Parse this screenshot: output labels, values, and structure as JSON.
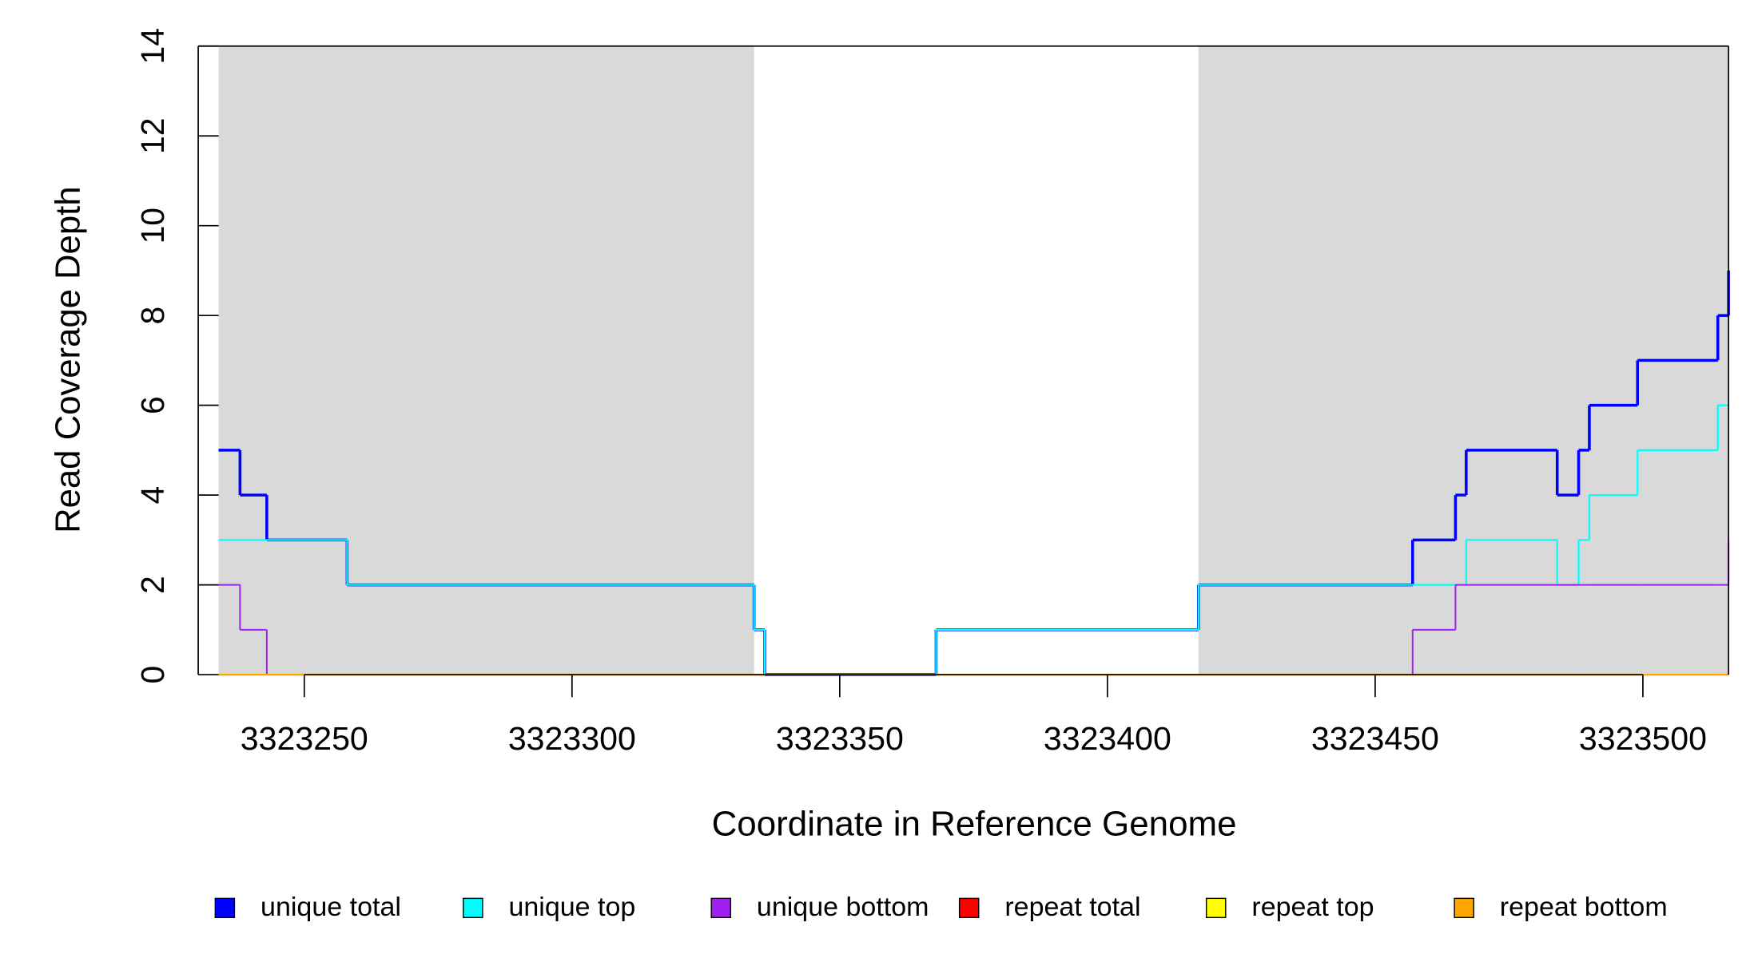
{
  "chart_data": {
    "type": "step",
    "x_label": "Coordinate in Reference Genome",
    "y_label": "Read Coverage Depth",
    "xlim": [
      3323234,
      3323516
    ],
    "ylim": [
      0,
      14
    ],
    "xticks": [
      3323250,
      3323300,
      3323350,
      3323400,
      3323450,
      3323500
    ],
    "yticks": [
      0,
      2,
      4,
      6,
      8,
      10,
      12,
      14
    ],
    "shaded_regions": [
      [
        3323234,
        3323334
      ],
      [
        3323417,
        3323516
      ]
    ],
    "shade_color": "#d9d9d9",
    "x": [
      3323234,
      3323238,
      3323243,
      3323258,
      3323334,
      3323336,
      3323368,
      3323417,
      3323457,
      3323465,
      3323467,
      3323484,
      3323488,
      3323490,
      3323499,
      3323514,
      3323516
    ],
    "series": [
      {
        "name": "unique total",
        "color": "#0000ff",
        "values": [
          5,
          4,
          3,
          2,
          1,
          0,
          1,
          2,
          3,
          4,
          5,
          4,
          5,
          6,
          7,
          8,
          9
        ]
      },
      {
        "name": "unique top",
        "color": "#00ffff",
        "values": [
          3,
          3,
          3,
          2,
          1,
          0,
          1,
          2,
          2,
          2,
          3,
          2,
          3,
          4,
          5,
          6,
          6
        ]
      },
      {
        "name": "unique bottom",
        "color": "#a020f0",
        "values": [
          2,
          1,
          0,
          0,
          0,
          0,
          0,
          0,
          1,
          2,
          2,
          2,
          2,
          2,
          2,
          2,
          3
        ]
      },
      {
        "name": "repeat total",
        "color": "#ff0000",
        "values": [
          0,
          0,
          0,
          0,
          0,
          0,
          0,
          0,
          0,
          0,
          0,
          0,
          0,
          0,
          0,
          0,
          0
        ]
      },
      {
        "name": "repeat top",
        "color": "#ffff00",
        "values": [
          0,
          0,
          0,
          0,
          0,
          0,
          0,
          0,
          0,
          0,
          0,
          0,
          0,
          0,
          0,
          0,
          0
        ]
      },
      {
        "name": "repeat bottom",
        "color": "#ffa500",
        "values": [
          0,
          0,
          0,
          0,
          0,
          0,
          0,
          0,
          0,
          0,
          0,
          0,
          0,
          0,
          0,
          0,
          0
        ]
      }
    ]
  }
}
